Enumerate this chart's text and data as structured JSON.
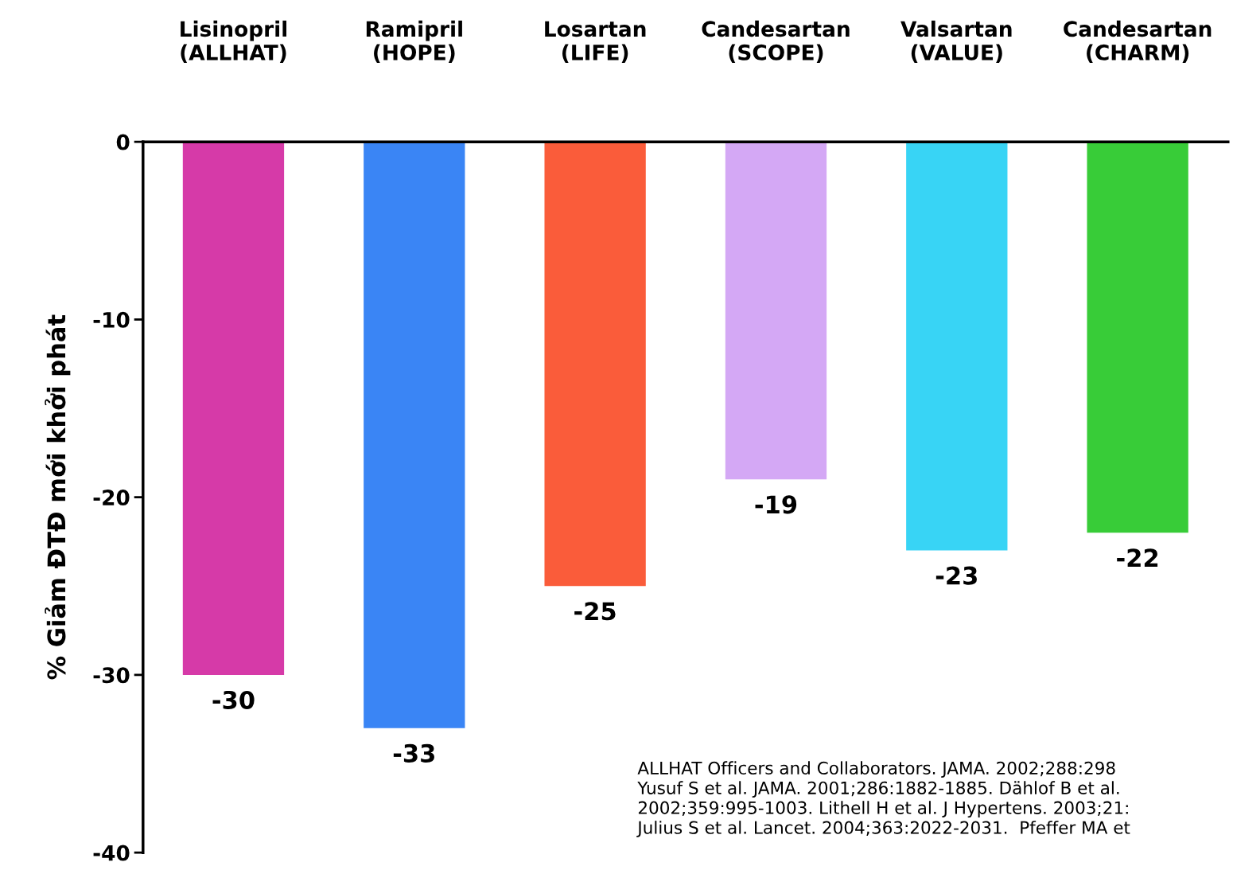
{
  "chart_data": {
    "type": "bar",
    "categories": [
      "Lisinopril\n(ALLHAT)",
      "Ramipril\n(HOPE)",
      "Losartan\n(LIFE)",
      "Candesartan\n(SCOPE)",
      "Valsartan\n(VALUE)",
      "Candesartan\n(CHARM)"
    ],
    "values": [
      -30,
      -33,
      -25,
      -19,
      -23,
      -22
    ],
    "colors": [
      "#d63aa8",
      "#3a85f5",
      "#fa5c3a",
      "#d4a8f5",
      "#38d4f5",
      "#38cc38"
    ],
    "value_labels": [
      "-30",
      "-33",
      "-25",
      "-19",
      "-23",
      "-22"
    ],
    "ylabel": "% Giảm ĐTĐ mới khởi phát",
    "ylim": [
      -40,
      0
    ],
    "yticks": [
      0,
      {
        "value": -10,
        "label": "-10"
      },
      {
        "value": -20,
        "label": "-20"
      },
      {
        "value": -30,
        "label": "-30"
      },
      {
        "value": -40,
        "label": "-40"
      }
    ],
    "grid": false,
    "annotations": [
      "ALLHAT Officers and Collaborators. JAMA. 2002;288:298\nYusuf S et al. JAMA. 2001;286:1882-1885. Dählof B et al.\n2002;359:995-1003. Lithell H et al. J Hypertens. 2003;21:\nJulius S et al. Lancet. 2004;363:2022-2031.  Pfeffer MA et"
    ]
  }
}
